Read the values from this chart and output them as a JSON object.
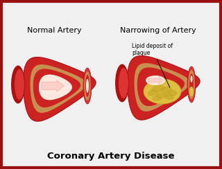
{
  "bg_color": "#f0f0f0",
  "border_color": "#991111",
  "title_text": "Coronary Artery Disease",
  "title_fontsize": 9.5,
  "label_left": "Normal Artery",
  "label_right": "Narrowing of Artery",
  "annotation_text": "Lipid deposit of\nplaque",
  "artery_outer_color": "#cc2222",
  "artery_outer_dark": "#aa1111",
  "artery_wall_color": "#dd3333",
  "artery_inner_color": "#cc2222",
  "lumen_color": "#f5c0b0",
  "lumen_highlight": "#fde8e0",
  "plaque_color": "#ddc040",
  "plaque_color2": "#c8a828",
  "plaque_texture": "#b89020",
  "arrow_color": "#f0b0a0",
  "arrow_highlight": "#fad0c8",
  "arrow_edge": "#cc7060",
  "tan_layer": "#c8904050",
  "tan_color": "#c89050",
  "red_texture": "#cc3333",
  "bg_white": "#ffffff"
}
